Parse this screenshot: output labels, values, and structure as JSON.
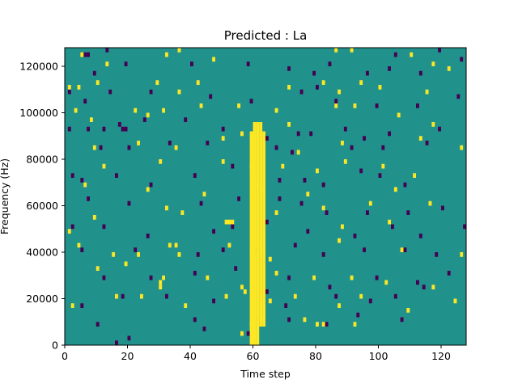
{
  "chart_data": {
    "type": "heatmap",
    "title": "Predicted : La",
    "xlabel": "Time step",
    "ylabel": "Frequency (Hz)",
    "xlim": [
      0,
      128
    ],
    "ylim": [
      0,
      128000
    ],
    "x_ticks": [
      0,
      20,
      40,
      60,
      80,
      100,
      120
    ],
    "y_ticks": [
      0,
      20000,
      40000,
      60000,
      80000,
      100000,
      120000
    ],
    "grid": false,
    "colormap": {
      "low": "#440154",
      "mid": "#21918c",
      "high": "#fde725"
    },
    "background_value": "mid",
    "cells_note_levels": [
      "low",
      "mid",
      "high"
    ],
    "bin_height": 2000,
    "bin_width": 1,
    "cells_high": [
      [
        2,
        125
      ],
      [
        17,
        120
      ],
      [
        28,
        120
      ],
      [
        34,
        120
      ],
      [
        38,
        120
      ],
      [
        49,
        122
      ],
      [
        65,
        122
      ],
      [
        68,
        120
      ],
      [
        93,
        125
      ],
      [
        99,
        125
      ],
      [
        111,
        120
      ],
      [
        126,
        125
      ],
      [
        47,
        114
      ],
      [
        61,
        114
      ],
      [
        62,
        116
      ],
      [
        74,
        113
      ],
      [
        117,
        112
      ],
      [
        6,
        111
      ],
      [
        61,
        109
      ],
      [
        72,
        106
      ],
      [
        81,
        107
      ],
      [
        87,
        108
      ],
      [
        104,
        109
      ],
      [
        109,
        105
      ],
      [
        126,
        108
      ],
      [
        11,
        103
      ],
      [
        16,
        102
      ],
      [
        33,
        103
      ],
      [
        59,
        103
      ],
      [
        68,
        103
      ],
      [
        70,
        103
      ],
      [
        105,
        104
      ],
      [
        110,
        105
      ],
      [
        4,
        97
      ],
      [
        18,
        95
      ],
      [
        34,
        97
      ],
      [
        55,
        97
      ],
      [
        67,
        95
      ],
      [
        71,
        99
      ],
      [
        84,
        99
      ],
      [
        117,
        102
      ],
      [
        123,
        98
      ],
      [
        2,
        90
      ],
      [
        31,
        93
      ],
      [
        74,
        93
      ],
      [
        89,
        95
      ],
      [
        126,
        95
      ],
      [
        13,
        83
      ],
      [
        28,
        83
      ],
      [
        40,
        83
      ],
      [
        44,
        83
      ],
      [
        60,
        85
      ],
      [
        61,
        84
      ],
      [
        62,
        82
      ],
      [
        63,
        86
      ],
      [
        64,
        80
      ],
      [
        70,
        86
      ],
      [
        79,
        86
      ],
      [
        95,
        84
      ],
      [
        104,
        84
      ],
      [
        111,
        83
      ],
      [
        123,
        87
      ],
      [
        0,
        84
      ],
      [
        2,
        85
      ],
      [
        3,
        83
      ],
      [
        20,
        83
      ],
      [
        31,
        83
      ],
      [
        36,
        80
      ],
      [
        57,
        79
      ],
      [
        69,
        78
      ],
      [
        73,
        77
      ],
      [
        88,
        81
      ],
      [
        98,
        79
      ],
      [
        112,
        80
      ],
      [
        115,
        76
      ],
      [
        1,
        73
      ],
      [
        26,
        72
      ],
      [
        48,
        72
      ],
      [
        54,
        75
      ],
      [
        71,
        76
      ],
      [
        81,
        73
      ],
      [
        96,
        73
      ],
      [
        106,
        74
      ],
      [
        121,
        75
      ],
      [
        8,
        67
      ],
      [
        16,
        68
      ],
      [
        24,
        70
      ],
      [
        31,
        70
      ],
      [
        42,
        64
      ],
      [
        53,
        69
      ],
      [
        74,
        67
      ],
      [
        85,
        70
      ],
      [
        107,
        66
      ],
      [
        116,
        69
      ],
      [
        5,
        62
      ],
      [
        13,
        60
      ],
      [
        32,
        62
      ],
      [
        36,
        63
      ],
      [
        47,
        61
      ],
      [
        86,
        63
      ],
      [
        91,
        63
      ],
      [
        110,
        62
      ],
      [
        117,
        60
      ],
      [
        122,
        59
      ],
      [
        1,
        55
      ],
      [
        4,
        55
      ],
      [
        10,
        56
      ],
      [
        29,
        56
      ],
      [
        36,
        54
      ],
      [
        42,
        56
      ],
      [
        71,
        55
      ],
      [
        82,
        56
      ],
      [
        87,
        54
      ],
      [
        94,
        56
      ],
      [
        100,
        55
      ],
      [
        115,
        54
      ],
      [
        128,
        55
      ],
      [
        3,
        50
      ],
      [
        8,
        48
      ],
      [
        22,
        50
      ],
      [
        26,
        49
      ],
      [
        31,
        50
      ],
      [
        43,
        51
      ],
      [
        55,
        51
      ],
      [
        67,
        50
      ],
      [
        71,
        47
      ],
      [
        86,
        51
      ],
      [
        92,
        51
      ],
      [
        106,
        49
      ],
      [
        117,
        47
      ],
      [
        9,
        42
      ],
      [
        23,
        43
      ],
      [
        35,
        42
      ],
      [
        50,
        44
      ],
      [
        56,
        45
      ],
      [
        74,
        41
      ],
      [
        88,
        43
      ],
      [
        113,
        44
      ],
      [
        126,
        42
      ],
      [
        12,
        38
      ],
      [
        30,
        39
      ],
      [
        50,
        39
      ],
      [
        59,
        38
      ],
      [
        69,
        38
      ],
      [
        80,
        37
      ],
      [
        89,
        39
      ],
      [
        101,
        38
      ],
      [
        111,
        36
      ],
      [
        6,
        34
      ],
      [
        26,
        33
      ],
      [
        44,
        32
      ],
      [
        63,
        33
      ],
      [
        77,
        32
      ],
      [
        97,
        30
      ],
      [
        105,
        33
      ],
      [
        116,
        30
      ],
      [
        1,
        24
      ],
      [
        9,
        27
      ],
      [
        32,
        29
      ],
      [
        37,
        28
      ],
      [
        51,
        26
      ],
      [
        52,
        26
      ],
      [
        53,
        26
      ],
      [
        67,
        28
      ],
      [
        82,
        29
      ],
      [
        88,
        25
      ],
      [
        103,
        26
      ],
      [
        4,
        21
      ],
      [
        15,
        19
      ],
      [
        23,
        19
      ],
      [
        33,
        21
      ],
      [
        35,
        21
      ],
      [
        36,
        19
      ],
      [
        52,
        21
      ],
      [
        61,
        21
      ],
      [
        65,
        18
      ],
      [
        87,
        22
      ],
      [
        107,
        20
      ],
      [
        126,
        19
      ],
      [
        10,
        16
      ],
      [
        19,
        17
      ],
      [
        30,
        13
      ],
      [
        30,
        12
      ],
      [
        31,
        14
      ],
      [
        45,
        14
      ],
      [
        56,
        12
      ],
      [
        67,
        15
      ],
      [
        79,
        14
      ],
      [
        91,
        14
      ],
      [
        102,
        13
      ],
      [
        117,
        12
      ],
      [
        2,
        8
      ],
      [
        16,
        10
      ],
      [
        24,
        10
      ],
      [
        38,
        8
      ],
      [
        51,
        10
      ],
      [
        57,
        11
      ],
      [
        65,
        9
      ],
      [
        73,
        10
      ],
      [
        87,
        8
      ],
      [
        94,
        10
      ],
      [
        109,
        7
      ],
      [
        124,
        9
      ],
      [
        56,
        2
      ],
      [
        59,
        4
      ],
      [
        63,
        5
      ],
      [
        76,
        5
      ],
      [
        80,
        4
      ],
      [
        82,
        4
      ],
      [
        92,
        4
      ]
    ],
    "cells_low": [
      [
        8,
        121
      ],
      [
        23,
        121
      ],
      [
        33,
        121
      ],
      [
        42,
        121
      ],
      [
        66,
        121
      ],
      [
        74,
        121
      ],
      [
        83,
        120
      ],
      [
        94,
        122
      ],
      [
        105,
        121
      ],
      [
        119,
        121
      ],
      [
        2,
        117
      ],
      [
        7,
        117
      ],
      [
        15,
        115
      ],
      [
        19,
        115
      ],
      [
        24,
        114
      ],
      [
        26,
        114
      ],
      [
        27,
        116
      ],
      [
        39,
        118
      ],
      [
        88,
        117
      ],
      [
        96,
        118
      ],
      [
        101,
        114
      ],
      [
        5,
        112
      ],
      [
        14,
        110
      ],
      [
        27,
        111
      ],
      [
        54,
        110
      ],
      [
        70,
        109
      ],
      [
        78,
        111
      ],
      [
        86,
        109
      ],
      [
        99,
        111
      ],
      [
        108,
        112
      ],
      [
        116,
        112
      ],
      [
        3,
        104
      ],
      [
        9,
        104
      ],
      [
        18,
        102
      ],
      [
        32,
        104
      ],
      [
        66,
        103
      ],
      [
        73,
        102
      ],
      [
        78,
        101
      ],
      [
        84,
        104
      ],
      [
        95,
        104
      ],
      [
        102,
        103
      ],
      [
        127,
        104
      ],
      [
        15,
        99
      ],
      [
        34,
        98
      ],
      [
        60,
        98
      ],
      [
        72,
        98
      ],
      [
        98,
        96
      ],
      [
        114,
        98
      ],
      [
        25,
        85
      ],
      [
        38,
        85
      ],
      [
        64,
        85
      ],
      [
        67,
        83
      ],
      [
        75,
        82
      ],
      [
        82,
        84
      ],
      [
        89,
        87
      ],
      [
        117,
        87
      ],
      [
        127,
        85
      ],
      [
        128,
        85
      ],
      [
        7,
        78
      ],
      [
        22,
        78
      ],
      [
        45,
        77
      ],
      [
        58,
        78
      ],
      [
        66,
        79
      ],
      [
        69,
        74
      ],
      [
        78,
        74
      ],
      [
        85,
        73
      ],
      [
        100,
        76
      ],
      [
        110,
        77
      ],
      [
        122,
        78
      ],
      [
        4,
        71
      ],
      [
        13,
        71
      ],
      [
        27,
        71
      ],
      [
        34,
        73
      ],
      [
        41,
        69
      ],
      [
        54,
        71
      ],
      [
        70,
        72
      ],
      [
        76,
        71
      ],
      [
        77,
        68
      ],
      [
        80,
        70
      ],
      [
        91,
        71
      ],
      [
        107,
        71
      ],
      [
        3,
        66
      ],
      [
        5,
        64
      ],
      [
        6,
        62
      ],
      [
        7,
        62
      ],
      [
        13,
        63
      ],
      [
        36,
        67
      ],
      [
        48,
        66
      ],
      [
        70,
        64
      ],
      [
        78,
        66
      ],
      [
        91,
        66
      ],
      [
        105,
        62
      ],
      [
        119,
        63
      ],
      [
        9,
        58
      ],
      [
        19,
        60
      ],
      [
        40,
        60
      ],
      [
        58,
        60
      ],
      [
        71,
        59
      ],
      [
        79,
        58
      ],
      [
        84,
        60
      ],
      [
        96,
        58
      ],
      [
        103,
        59
      ],
      [
        113,
        58
      ],
      [
        126,
        61
      ],
      [
        1,
        54
      ],
      [
        6,
        52
      ],
      [
        14,
        54
      ],
      [
        27,
        54
      ],
      [
        46,
        53
      ],
      [
        59,
        52
      ],
      [
        75,
        54
      ],
      [
        80,
        55
      ],
      [
        86,
        52
      ],
      [
        99,
        51
      ],
      [
        112,
        51
      ],
      [
        125,
        53
      ],
      [
        1,
        46
      ],
      [
        7,
        46
      ],
      [
        12,
        46
      ],
      [
        17,
        47
      ],
      [
        18,
        46
      ],
      [
        19,
        46
      ],
      [
        25,
        48
      ],
      [
        38,
        48
      ],
      [
        50,
        46
      ],
      [
        64,
        44
      ],
      [
        74,
        45
      ],
      [
        78,
        45
      ],
      [
        89,
        46
      ],
      [
        95,
        44
      ],
      [
        103,
        45
      ],
      [
        119,
        46
      ],
      [
        11,
        42
      ],
      [
        20,
        42
      ],
      [
        33,
        43
      ],
      [
        45,
        43
      ],
      [
        67,
        42
      ],
      [
        72,
        41
      ],
      [
        91,
        42
      ],
      [
        101,
        42
      ],
      [
        115,
        43
      ],
      [
        2,
        36
      ],
      [
        5,
        35
      ],
      [
        16,
        36
      ],
      [
        27,
        34
      ],
      [
        41,
        36
      ],
      [
        53,
        38
      ],
      [
        62,
        36
      ],
      [
        68,
        35
      ],
      [
        76,
        35
      ],
      [
        82,
        34
      ],
      [
        94,
        37
      ],
      [
        100,
        36
      ],
      [
        108,
        34
      ],
      [
        7,
        31
      ],
      [
        20,
        30
      ],
      [
        43,
        30
      ],
      [
        55,
        31
      ],
      [
        68,
        31
      ],
      [
        75,
        30
      ],
      [
        83,
        28
      ],
      [
        96,
        28
      ],
      [
        109,
        28
      ],
      [
        120,
        29
      ],
      [
        2,
        25
      ],
      [
        12,
        25
      ],
      [
        26,
        23
      ],
      [
        47,
        24
      ],
      [
        53,
        25
      ],
      [
        64,
        26
      ],
      [
        77,
        24
      ],
      [
        92,
        23
      ],
      [
        104,
        25
      ],
      [
        113,
        23
      ],
      [
        127,
        25
      ],
      [
        5,
        20
      ],
      [
        22,
        20
      ],
      [
        42,
        19
      ],
      [
        50,
        20
      ],
      [
        60,
        20
      ],
      [
        73,
        21
      ],
      [
        82,
        19
      ],
      [
        95,
        20
      ],
      [
        108,
        20
      ],
      [
        118,
        19
      ],
      [
        12,
        14
      ],
      [
        27,
        14
      ],
      [
        41,
        15
      ],
      [
        54,
        16
      ],
      [
        71,
        14
      ],
      [
        84,
        12
      ],
      [
        99,
        14
      ],
      [
        112,
        13
      ],
      [
        122,
        15
      ],
      [
        5,
        8
      ],
      [
        18,
        10
      ],
      [
        32,
        10
      ],
      [
        47,
        9
      ],
      [
        64,
        11
      ],
      [
        70,
        8
      ],
      [
        86,
        10
      ],
      [
        97,
        9
      ],
      [
        105,
        10
      ],
      [
        114,
        12
      ],
      [
        10,
        4
      ],
      [
        16,
        0
      ],
      [
        20,
        1
      ],
      [
        41,
        5
      ],
      [
        44,
        3
      ],
      [
        58,
        2
      ],
      [
        71,
        5
      ],
      [
        83,
        4
      ],
      [
        93,
        6
      ],
      [
        107,
        5
      ]
    ]
  }
}
